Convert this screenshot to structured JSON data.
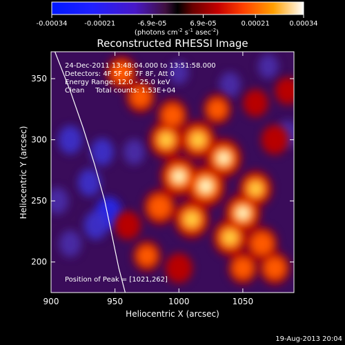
{
  "colorbar": {
    "ticks": [
      "-0.00034",
      "-0.00021",
      "-6.9e-05",
      "6.9e-05",
      "0.00021",
      "0.00034"
    ],
    "tick_values": [
      -0.00034,
      -0.00021,
      -6.9e-05,
      6.9e-05,
      0.00021,
      0.00034
    ],
    "range": [
      -0.00034,
      0.00034
    ],
    "units_prefix": "(photons cm",
    "units_exp1": "-2",
    "units_mid": " s",
    "units_exp2": "-1",
    "units_mid2": " asec",
    "units_exp3": "-2",
    "units_suffix": ")"
  },
  "chart_data": {
    "type": "heatmap",
    "title": "Reconstructed RHESSI Image",
    "xlabel": "Heliocentric X (arcsec)",
    "ylabel": "Heliocentric Y (arcsec)",
    "xlim": [
      900,
      1090
    ],
    "ylim": [
      175,
      372
    ],
    "x_ticks": [
      900,
      950,
      1000,
      1050
    ],
    "y_ticks": [
      200,
      250,
      300,
      350
    ],
    "annotations": [
      "24-Dec-2011 13:48:04.000 to 13:51:58.000",
      "Detectors: 4F 5F 6F 7F 8F, Att 0",
      "Energy Range: 12.0 - 25.0 keV",
      "Clean     Total counts: 1.53E+04"
    ],
    "peak_label": "Position of Peak = [1021,262]",
    "peak": [
      1021,
      262
    ],
    "limb_curve": [
      [
        903,
        372
      ],
      [
        915,
        340
      ],
      [
        925,
        310
      ],
      [
        934,
        280
      ],
      [
        942,
        250
      ],
      [
        948,
        220
      ],
      [
        953,
        195
      ],
      [
        958,
        175
      ]
    ],
    "bright_blobs": [
      {
        "x": 1021,
        "y": 262,
        "intensity": 1.0
      },
      {
        "x": 1000,
        "y": 270,
        "intensity": 0.9
      },
      {
        "x": 1035,
        "y": 285,
        "intensity": 0.85
      },
      {
        "x": 1015,
        "y": 300,
        "intensity": 0.8
      },
      {
        "x": 990,
        "y": 300,
        "intensity": 0.75
      },
      {
        "x": 1050,
        "y": 240,
        "intensity": 0.85
      },
      {
        "x": 1060,
        "y": 260,
        "intensity": 0.7
      },
      {
        "x": 1040,
        "y": 220,
        "intensity": 0.75
      },
      {
        "x": 1010,
        "y": 235,
        "intensity": 0.8
      },
      {
        "x": 985,
        "y": 245,
        "intensity": 0.65
      },
      {
        "x": 1065,
        "y": 215,
        "intensity": 0.6
      },
      {
        "x": 1075,
        "y": 195,
        "intensity": 0.55
      },
      {
        "x": 1050,
        "y": 195,
        "intensity": 0.5
      },
      {
        "x": 995,
        "y": 320,
        "intensity": 0.55
      },
      {
        "x": 970,
        "y": 335,
        "intensity": 0.5
      },
      {
        "x": 955,
        "y": 355,
        "intensity": 0.55
      },
      {
        "x": 1030,
        "y": 325,
        "intensity": 0.45
      },
      {
        "x": 975,
        "y": 205,
        "intensity": 0.45
      },
      {
        "x": 1000,
        "y": 195,
        "intensity": 0.4
      },
      {
        "x": 960,
        "y": 230,
        "intensity": 0.35
      },
      {
        "x": 1075,
        "y": 300,
        "intensity": 0.4
      },
      {
        "x": 1085,
        "y": 340,
        "intensity": 0.3
      },
      {
        "x": 1060,
        "y": 330,
        "intensity": 0.3
      }
    ],
    "dark_blobs": [
      {
        "x": 915,
        "y": 300,
        "intensity": 0.6
      },
      {
        "x": 930,
        "y": 265,
        "intensity": 0.55
      },
      {
        "x": 945,
        "y": 240,
        "intensity": 0.8
      },
      {
        "x": 935,
        "y": 230,
        "intensity": 0.6
      },
      {
        "x": 915,
        "y": 215,
        "intensity": 0.5
      },
      {
        "x": 905,
        "y": 250,
        "intensity": 0.5
      },
      {
        "x": 940,
        "y": 290,
        "intensity": 0.55
      },
      {
        "x": 965,
        "y": 290,
        "intensity": 0.45
      },
      {
        "x": 1040,
        "y": 345,
        "intensity": 0.45
      },
      {
        "x": 1085,
        "y": 305,
        "intensity": 0.5
      },
      {
        "x": 1070,
        "y": 360,
        "intensity": 0.4
      },
      {
        "x": 1000,
        "y": 355,
        "intensity": 0.35
      }
    ]
  },
  "footer": {
    "timestamp": "19-Aug-2013 20:04"
  }
}
